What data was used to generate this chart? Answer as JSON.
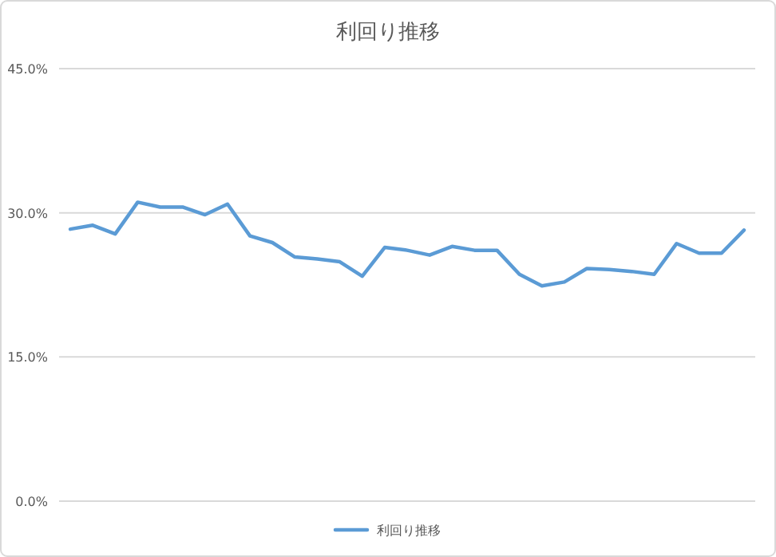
{
  "chart_data": {
    "type": "line",
    "title": "利回り推移",
    "categories": [
      null,
      null,
      null,
      null,
      null,
      null,
      null,
      null,
      null,
      null,
      null,
      null,
      null,
      null,
      null,
      null,
      null,
      null,
      null,
      null,
      null,
      null,
      null,
      null,
      null,
      null,
      null,
      null,
      null,
      null,
      null
    ],
    "series": [
      {
        "name": "利回り推移",
        "color": "#5b9bd5",
        "values": [
          28.3,
          28.7,
          27.8,
          31.1,
          30.6,
          30.6,
          29.8,
          30.9,
          27.6,
          26.9,
          25.4,
          25.2,
          24.9,
          23.4,
          26.4,
          26.1,
          25.6,
          26.5,
          26.1,
          26.1,
          23.6,
          22.4,
          22.8,
          24.2,
          24.1,
          23.9,
          23.6,
          26.8,
          25.8,
          25.8,
          28.2
        ]
      }
    ],
    "ylim": [
      0,
      45
    ],
    "yticks": [
      {
        "value": 0,
        "label": "0.0%"
      },
      {
        "value": 15,
        "label": "15.0%"
      },
      {
        "value": 30,
        "label": "30.0%"
      },
      {
        "value": 45,
        "label": "45.0%"
      }
    ],
    "grid": "y",
    "legend": "bottom",
    "marker": "none",
    "line_style": "solid"
  }
}
